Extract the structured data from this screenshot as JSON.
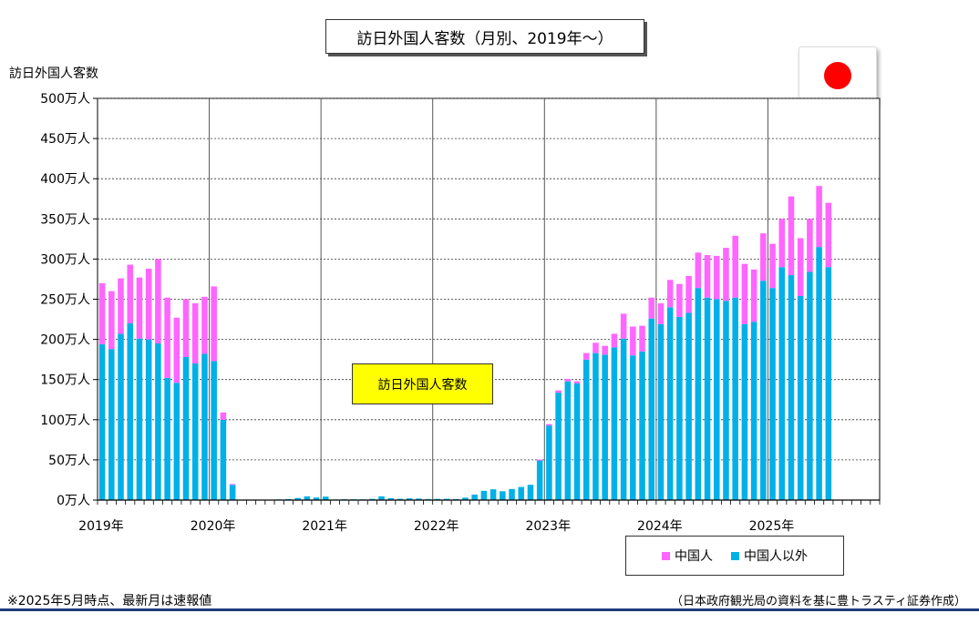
{
  "chart_data": {
    "type": "bar",
    "stacked": true,
    "title": "訪日外国人客数（月別、2019年～）",
    "ylabel": "訪日外国人客数",
    "ylim": [
      0,
      500
    ],
    "yticks": [
      0,
      50,
      100,
      150,
      200,
      250,
      300,
      350,
      400,
      450,
      500
    ],
    "ytick_labels": [
      "0万人",
      "50万人",
      "100万人",
      "150万人",
      "200万人",
      "250万人",
      "300万人",
      "350万人",
      "400万人",
      "450万人",
      "500万人"
    ],
    "year_labels": [
      "2019年",
      "2020年",
      "2021年",
      "2022年",
      "2023年",
      "2024年",
      "2025年"
    ],
    "months_per_year": 12,
    "x_axis_months": 84,
    "grid": true,
    "legend_position": "bottom-right",
    "annotation": "訪日外国人客数",
    "series": [
      {
        "name": "中国人以外",
        "color": "#00b0e8",
        "values": [
          194,
          188,
          207,
          220,
          201,
          200,
          195,
          152,
          146,
          178,
          170,
          182,
          173,
          100,
          19,
          0.3,
          0.2,
          0.2,
          0.4,
          0.8,
          1.3,
          2.6,
          4.6,
          3.2,
          4.3,
          0.7,
          1.0,
          1.0,
          0.9,
          1.5,
          4.7,
          2.4,
          1.6,
          2.2,
          1.9,
          1.3,
          1.5,
          1.6,
          1.3,
          3.0,
          6.8,
          11.5,
          13.4,
          11.0,
          13.8,
          16.3,
          19.0,
          49.3,
          92.8,
          133.7,
          147.8,
          145.3,
          174.8,
          183.0,
          181.0,
          190.0,
          201.0,
          180.0,
          185.0,
          226.0,
          219.0,
          240.0,
          228.0,
          233.0,
          264.0,
          252.0,
          250.0,
          248.0,
          252.0,
          219.0,
          222.0,
          273.0,
          264.0,
          290.0,
          280.0,
          254.0,
          284.0,
          315.0,
          290.0
        ]
      },
      {
        "name": "中国人",
        "color": "#ff66ff",
        "values": [
          76,
          72,
          69,
          73,
          76,
          88,
          105,
          100,
          81,
          72,
          75,
          71,
          93,
          9,
          1,
          0,
          0,
          0,
          0,
          0,
          0,
          0,
          0,
          0,
          0,
          0,
          0,
          0,
          0,
          0,
          0,
          0,
          0,
          0,
          0,
          0,
          0,
          0,
          0,
          0,
          0,
          0,
          0,
          0,
          0,
          0,
          0,
          1.2,
          1.7,
          2.8,
          3.0,
          2.6,
          8.2,
          12.8,
          11.0,
          17.0,
          31.0,
          36.0,
          32.0,
          26.0,
          26.0,
          34.0,
          41.0,
          46.0,
          44.0,
          53.0,
          54.0,
          66.0,
          77.0,
          75.0,
          65.0,
          59.0,
          55.0,
          60.0,
          98.0,
          72.0,
          66.0,
          76.0,
          80.0
        ]
      }
    ]
  },
  "legend": [
    {
      "label": "中国人",
      "color": "#ff66ff"
    },
    {
      "label": "中国人以外",
      "color": "#00b0e8"
    }
  ],
  "footer": {
    "note": "※2025年5月時点、最新月は速報値",
    "source": "（日本政府観光局の資料を基に豊トラスティ証券作成）"
  },
  "colors": {
    "flag_red": "#ff0000",
    "annotation_bg": "#ffff00",
    "footer_rule": "#1f3a7a"
  }
}
